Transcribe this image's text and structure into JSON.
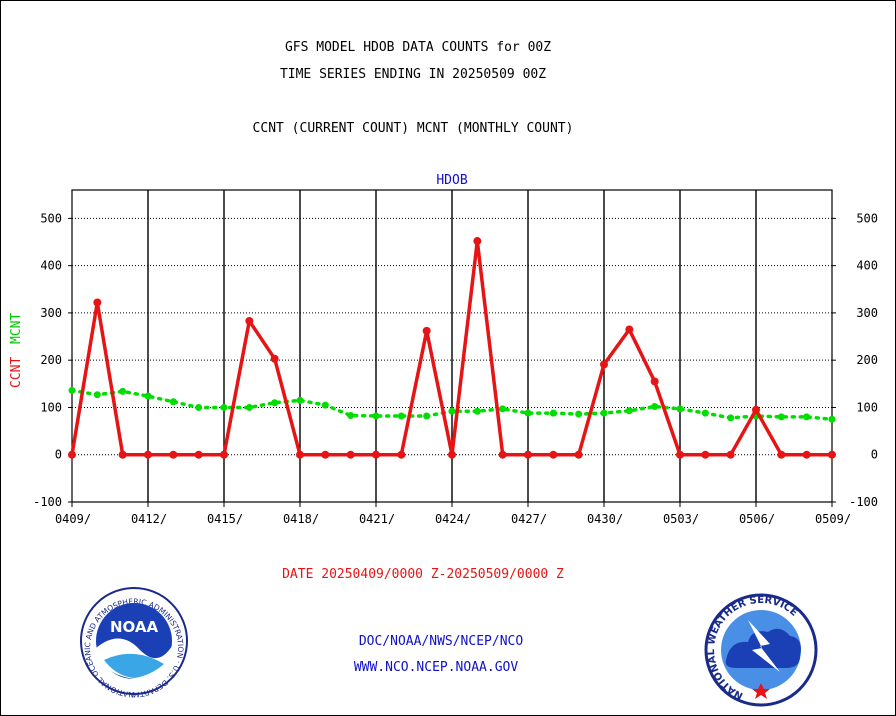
{
  "header": {
    "title_line1": "GFS MODEL HDOB DATA COUNTS for 00Z",
    "title_line2": "TIME SERIES ENDING IN 20250509 00Z",
    "subtitle": "CCNT (CURRENT COUNT) MCNT (MONTHLY COUNT)"
  },
  "footer": {
    "date_range": "DATE 20250409/0000 Z-20250509/0000 Z",
    "org_line": "DOC/NOAA/NWS/NCEP/NCO",
    "url_line": "WWW.NCO.NCEP.NOAA.GOV"
  },
  "logos": {
    "noaa_text": "NOAA",
    "noaa_ring_text": "NATIONAL OCEANIC AND ATMOSPHERIC ADMINISTRATION · U.S. DEPARTMENT OF COMMERCE ·",
    "nws_ring_text": "NATIONAL WEATHER SERVICE"
  },
  "chart_data": {
    "type": "line",
    "title": "HDOB",
    "ylabel_ccnt": "CCNT",
    "ylabel_mcnt": "MCNT",
    "ylim": [
      -100,
      560
    ],
    "yticks": [
      -100,
      0,
      100,
      200,
      300,
      400,
      500
    ],
    "xticks": [
      "0409/",
      "0412/",
      "0415/",
      "0418/",
      "0421/",
      "0424/",
      "0427/",
      "0430/",
      "0503/",
      "0506/",
      "0509/"
    ],
    "x": [
      "0409",
      "0410",
      "0411",
      "0412",
      "0413",
      "0414",
      "0415",
      "0416",
      "0417",
      "0418",
      "0419",
      "0420",
      "0421",
      "0422",
      "0423",
      "0424",
      "0425",
      "0426",
      "0427",
      "0428",
      "0429",
      "0430",
      "0501",
      "0502",
      "0503",
      "0504",
      "0505",
      "0506",
      "0507",
      "0508",
      "0509"
    ],
    "grid": true,
    "series": [
      {
        "name": "CCNT",
        "color": "#e61414",
        "style": "solid",
        "values": [
          0,
          322,
          0,
          0,
          0,
          0,
          0,
          283,
          203,
          0,
          0,
          0,
          0,
          0,
          262,
          0,
          452,
          0,
          0,
          0,
          0,
          191,
          265,
          155,
          0,
          0,
          0,
          95,
          0,
          0,
          0
        ]
      },
      {
        "name": "MCNT",
        "color": "#00dd00",
        "style": "dotted",
        "values": [
          136,
          127,
          134,
          124,
          112,
          100,
          100,
          100,
          110,
          115,
          105,
          83,
          82,
          82,
          82,
          92,
          92,
          97,
          88,
          88,
          86,
          88,
          93,
          102,
          97,
          88,
          78,
          82,
          80,
          80,
          75
        ]
      }
    ]
  }
}
